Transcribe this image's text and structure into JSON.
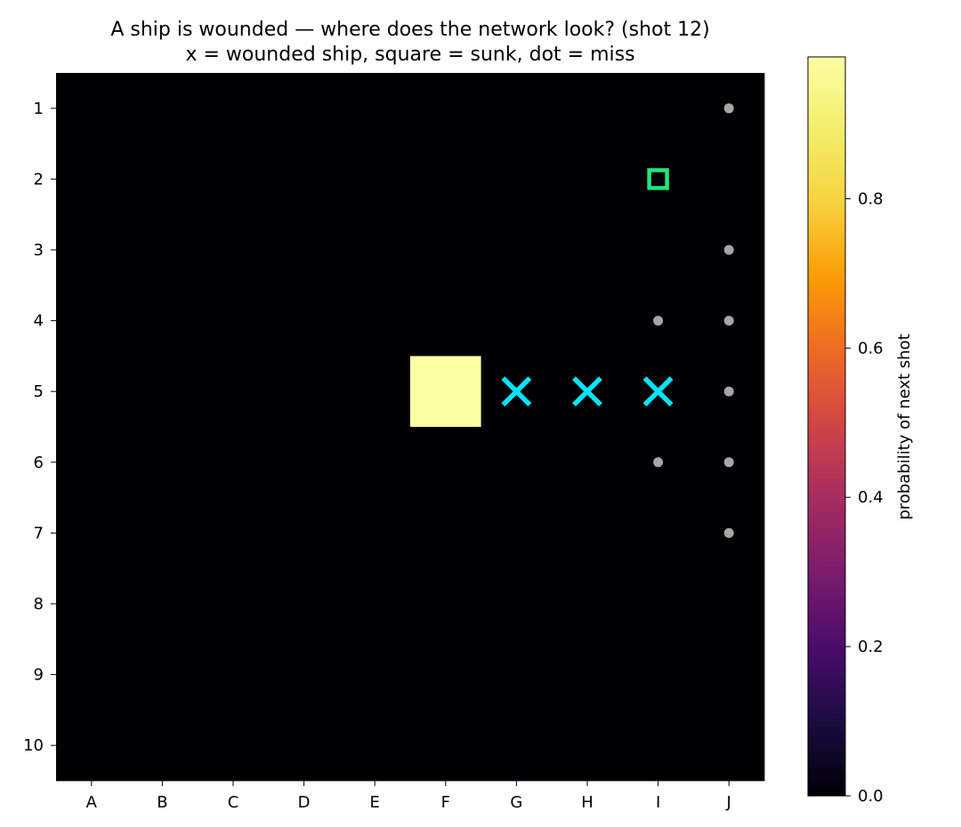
{
  "chart_data": {
    "type": "heatmap",
    "title": "A ship is wounded — where does the network look? (shot 12)",
    "subtitle": "x = wounded ship,  square = sunk,  dot = miss",
    "x_labels": [
      "A",
      "B",
      "C",
      "D",
      "E",
      "F",
      "G",
      "H",
      "I",
      "J"
    ],
    "y_labels": [
      "1",
      "2",
      "3",
      "4",
      "5",
      "6",
      "7",
      "8",
      "9",
      "10"
    ],
    "colormap": "inferno",
    "value_range": [
      0,
      1
    ],
    "high_probability_cells": [
      {
        "col": "F",
        "row": "5",
        "value": 0.99
      }
    ],
    "background_value": 0,
    "wounded_cells": [
      {
        "col": "G",
        "row": "5"
      },
      {
        "col": "H",
        "row": "5"
      },
      {
        "col": "I",
        "row": "5"
      }
    ],
    "sunk_cells": [
      {
        "col": "I",
        "row": "2"
      }
    ],
    "miss_cells": [
      {
        "col": "J",
        "row": "1"
      },
      {
        "col": "J",
        "row": "3"
      },
      {
        "col": "I",
        "row": "4"
      },
      {
        "col": "J",
        "row": "4"
      },
      {
        "col": "J",
        "row": "5"
      },
      {
        "col": "I",
        "row": "6"
      },
      {
        "col": "J",
        "row": "6"
      },
      {
        "col": "J",
        "row": "7"
      }
    ],
    "colorbar": {
      "label": "probability of next shot",
      "ticks": [
        0.0,
        0.2,
        0.4,
        0.6,
        0.8
      ],
      "tick_labels": [
        "0.0",
        "0.2",
        "0.4",
        "0.6",
        "0.8"
      ],
      "range": [
        0,
        0.99
      ]
    },
    "marker_colors": {
      "wounded": "#00e5ff",
      "sunk": "#1ee87a",
      "miss": "#a6a6a6"
    }
  }
}
